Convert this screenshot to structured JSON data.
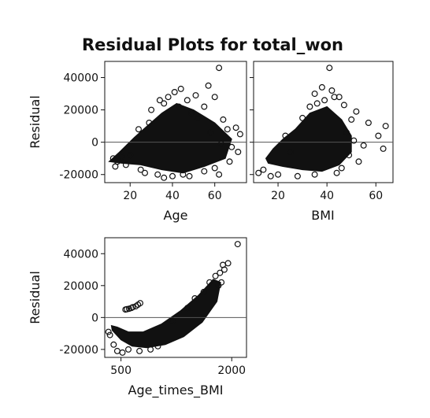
{
  "chart_data": {
    "type": "scatter",
    "title": "Residual Plots for total_won",
    "marker": "open-circle",
    "marker_color": "#111111",
    "reference_line_y": 0,
    "panels": [
      {
        "id": "age",
        "xlabel": "Age",
        "ylabel": "Residual",
        "xlim": [
          8,
          75
        ],
        "ylim": [
          -25000,
          50000
        ],
        "xticks": [
          20,
          40,
          60
        ],
        "yticks": [
          -20000,
          0,
          20000,
          40000
        ],
        "ytick_labels": [
          "-20000",
          "0",
          "20000",
          "40000"
        ],
        "dense_region": [
          [
            10,
            -12000
          ],
          [
            16,
            -13000
          ],
          [
            25,
            -14000
          ],
          [
            35,
            -17000
          ],
          [
            45,
            -19000
          ],
          [
            55,
            -15000
          ],
          [
            65,
            -10000
          ],
          [
            68,
            2000
          ],
          [
            60,
            12000
          ],
          [
            50,
            20000
          ],
          [
            42,
            24000
          ],
          [
            35,
            18000
          ],
          [
            28,
            10000
          ],
          [
            22,
            3000
          ],
          [
            15,
            -6000
          ]
        ],
        "points": [
          [
            62,
            46000
          ],
          [
            57,
            35000
          ],
          [
            44,
            33000
          ],
          [
            41,
            31000
          ],
          [
            38,
            28000
          ],
          [
            51,
            29000
          ],
          [
            60,
            28000
          ],
          [
            36,
            24000
          ],
          [
            47,
            26000
          ],
          [
            30,
            20000
          ],
          [
            55,
            22000
          ],
          [
            64,
            14000
          ],
          [
            66,
            8000
          ],
          [
            70,
            9000
          ],
          [
            72,
            5000
          ],
          [
            68,
            -3000
          ],
          [
            71,
            -6000
          ],
          [
            12,
            -10000
          ],
          [
            14,
            -12000
          ],
          [
            18,
            -14000
          ],
          [
            33,
            -20000
          ],
          [
            40,
            -21000
          ],
          [
            48,
            -21000
          ],
          [
            55,
            -18000
          ],
          [
            60,
            -16000
          ],
          [
            25,
            -17000
          ],
          [
            20,
            -8000
          ],
          [
            13,
            -15000
          ],
          [
            62,
            -20000
          ],
          [
            36,
            -22000
          ],
          [
            45,
            -20000
          ],
          [
            67,
            -12000
          ],
          [
            29,
            12000
          ],
          [
            52,
            15000
          ],
          [
            58,
            6000
          ],
          [
            63,
            -1000
          ],
          [
            24,
            8000
          ],
          [
            43,
            22000
          ],
          [
            49,
            18000
          ],
          [
            34,
            26000
          ],
          [
            27,
            -19000
          ],
          [
            16,
            -9000
          ]
        ]
      },
      {
        "id": "bmi",
        "xlabel": "BMI",
        "ylabel": "",
        "xlim": [
          10,
          67
        ],
        "ylim": [
          -25000,
          50000
        ],
        "xticks": [
          20,
          40,
          60
        ],
        "yticks": [
          -20000,
          0,
          20000,
          40000
        ],
        "ytick_labels": [],
        "dense_region": [
          [
            16,
            -13000
          ],
          [
            22,
            -15000
          ],
          [
            30,
            -17000
          ],
          [
            38,
            -18000
          ],
          [
            45,
            -14000
          ],
          [
            50,
            -6000
          ],
          [
            50,
            4000
          ],
          [
            46,
            14000
          ],
          [
            40,
            22000
          ],
          [
            33,
            18000
          ],
          [
            27,
            8000
          ],
          [
            22,
            2000
          ],
          [
            18,
            -4000
          ],
          [
            15,
            -10000
          ]
        ],
        "points": [
          [
            41,
            46000
          ],
          [
            38,
            34000
          ],
          [
            42,
            32000
          ],
          [
            35,
            30000
          ],
          [
            45,
            28000
          ],
          [
            39,
            26000
          ],
          [
            47,
            23000
          ],
          [
            52,
            19000
          ],
          [
            57,
            12000
          ],
          [
            61,
            4000
          ],
          [
            64,
            10000
          ],
          [
            63,
            -4000
          ],
          [
            49,
            -8000
          ],
          [
            53,
            -12000
          ],
          [
            14,
            -17000
          ],
          [
            12,
            -19000
          ],
          [
            17,
            -21000
          ],
          [
            20,
            -20000
          ],
          [
            28,
            -21000
          ],
          [
            35,
            -20000
          ],
          [
            44,
            -19000
          ],
          [
            48,
            6000
          ],
          [
            36,
            24000
          ],
          [
            30,
            15000
          ],
          [
            25,
            -6000
          ],
          [
            55,
            -2000
          ],
          [
            43,
            28000
          ],
          [
            50,
            14000
          ],
          [
            33,
            22000
          ],
          [
            46,
            -16000
          ],
          [
            51,
            1000
          ],
          [
            23,
            4000
          ]
        ]
      },
      {
        "id": "age_times_bmi",
        "xlabel": "Age_times_BMI",
        "ylabel": "Residual",
        "xlim": [
          280,
          2200
        ],
        "ylim": [
          -25000,
          50000
        ],
        "xticks": [
          500,
          2000
        ],
        "yticks": [
          -20000,
          0,
          20000,
          40000
        ],
        "ytick_labels": [
          "-20000",
          "0",
          "20000",
          "40000"
        ],
        "dense_region": [
          [
            380,
            -8000
          ],
          [
            500,
            -14000
          ],
          [
            650,
            -18000
          ],
          [
            850,
            -19000
          ],
          [
            1100,
            -17000
          ],
          [
            1350,
            -12000
          ],
          [
            1600,
            -3000
          ],
          [
            1800,
            10000
          ],
          [
            1850,
            22000
          ],
          [
            1750,
            24000
          ],
          [
            1550,
            14000
          ],
          [
            1300,
            4000
          ],
          [
            1050,
            -4000
          ],
          [
            800,
            -9000
          ],
          [
            600,
            -9000
          ],
          [
            450,
            -6000
          ],
          [
            370,
            -5000
          ]
        ],
        "points": [
          [
            2080,
            46000
          ],
          [
            1950,
            34000
          ],
          [
            1880,
            33000
          ],
          [
            1840,
            28000
          ],
          [
            1780,
            26000
          ],
          [
            1700,
            22000
          ],
          [
            1860,
            22000
          ],
          [
            1620,
            16000
          ],
          [
            1500,
            12000
          ],
          [
            400,
            -17000
          ],
          [
            450,
            -21000
          ],
          [
            520,
            -22000
          ],
          [
            600,
            -20000
          ],
          [
            750,
            -21000
          ],
          [
            900,
            -20000
          ],
          [
            1000,
            -18000
          ],
          [
            350,
            -11000
          ],
          [
            330,
            -9000
          ],
          [
            560,
            5000
          ],
          [
            610,
            5500
          ],
          [
            660,
            6500
          ],
          [
            700,
            7000
          ],
          [
            730,
            8000
          ],
          [
            760,
            9000
          ],
          [
            640,
            6000
          ],
          [
            580,
            5200
          ],
          [
            1900,
            30000
          ],
          [
            1820,
            20000
          ],
          [
            1400,
            6000
          ],
          [
            1200,
            -2000
          ]
        ]
      }
    ]
  }
}
